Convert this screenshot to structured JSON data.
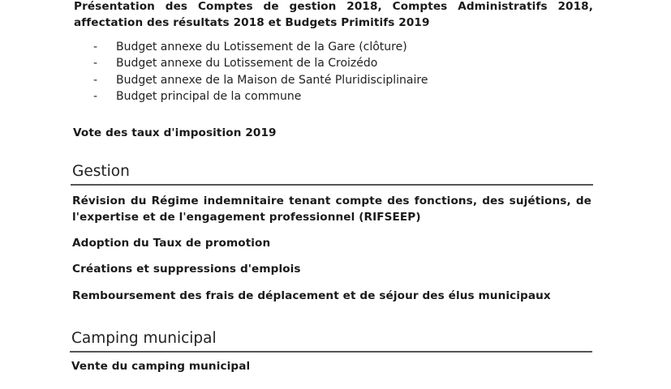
{
  "finances": {
    "intro": "Présentation des Comptes de gestion 2018, Comptes Administratifs 2018, affectation des résultats 2018 et Budgets Primitifs 2019",
    "bullet": "-",
    "items": [
      "Budget annexe du Lotissement de la Gare (clôture)",
      "Budget annexe du Lotissement de la Croizédo",
      "Budget annexe de la Maison de Santé Pluridisciplinaire",
      "Budget principal de la commune"
    ],
    "vote": "Vote des taux d'imposition 2019"
  },
  "gestion": {
    "heading": "Gestion",
    "items": [
      "Révision du Régime indemnitaire tenant compte des fonctions, des sujétions, de l'expertise et de l'engagement professionnel (RIFSEEP)",
      "Adoption du Taux de promotion",
      "Créations et suppressions d'emplois",
      "Remboursement des frais de déplacement et de séjour des élus municipaux"
    ]
  },
  "camping": {
    "heading": "Camping municipal",
    "items": [
      "Vente du camping municipal"
    ]
  }
}
